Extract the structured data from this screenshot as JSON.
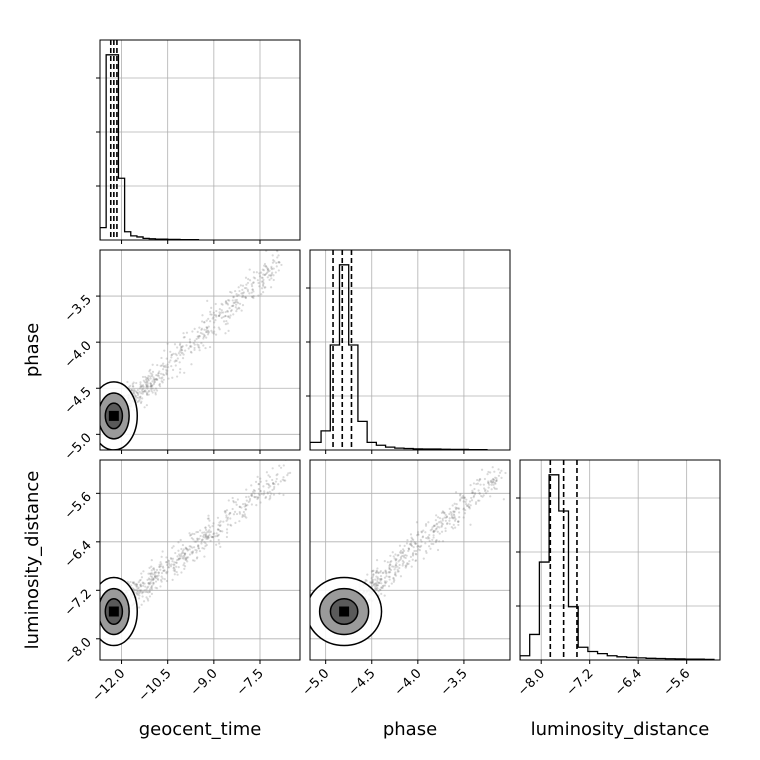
{
  "chart_data": {
    "type": "corner",
    "parameters": [
      "geocent_time",
      "phase",
      "luminosity_distance"
    ],
    "grid": true,
    "colors": {
      "hist": "#000000",
      "points": "#808080",
      "quantile_lines": "#000000"
    },
    "axis_limits": {
      "geocent_time": [
        -12.7,
        -6.2
      ],
      "phase": [
        -5.17,
        -3.0
      ],
      "luminosity_distance": [
        -8.35,
        -5.05
      ]
    },
    "ticks": {
      "geocent_time": {
        "values": [
          -12.0,
          -10.5,
          -9.0,
          -7.5
        ],
        "labels": [
          "−12.0",
          "−10.5",
          "−9.0",
          "−7.5"
        ]
      },
      "phase": {
        "values": [
          -5.0,
          -4.5,
          -4.0,
          -3.5
        ],
        "labels": [
          "−5.0",
          "−4.5",
          "−4.0",
          "−3.5"
        ]
      },
      "luminosity_distance": {
        "values": [
          -8.0,
          -7.2,
          -6.4,
          -5.6
        ],
        "labels": [
          "−8.0",
          "−7.2",
          "−6.4",
          "−5.6"
        ]
      }
    },
    "histograms": {
      "geocent_time": {
        "bin_edges": [
          -12.7,
          -12.5,
          -12.3,
          -12.1,
          -11.9,
          -11.7,
          -11.5,
          -11.3,
          -11.1,
          -10.9,
          -10.7,
          -10.5,
          -10.3,
          -10.1,
          -9.9,
          -9.7,
          -9.5
        ],
        "counts": [
          0.06,
          0.9,
          0.9,
          0.3,
          0.04,
          0.02,
          0.015,
          0.008,
          0.006,
          0.004,
          0.004,
          0.003,
          0.003,
          0.002,
          0.002,
          0.002
        ],
        "quantiles": [
          -12.35,
          -12.25,
          -12.15
        ]
      },
      "phase": {
        "bin_edges": [
          -5.17,
          -5.05,
          -4.95,
          -4.85,
          -4.75,
          -4.65,
          -4.55,
          -4.45,
          -4.35,
          -4.25,
          -4.15,
          -4.05,
          -3.95,
          -3.85,
          -3.75,
          -3.65,
          -3.55,
          -3.45,
          -3.35,
          -3.25
        ],
        "counts": [
          0.04,
          0.1,
          0.55,
          0.97,
          0.55,
          0.15,
          0.04,
          0.025,
          0.015,
          0.01,
          0.008,
          0.006,
          0.005,
          0.005,
          0.004,
          0.003,
          0.003,
          0.002,
          0.002
        ],
        "quantiles": [
          -4.92,
          -4.82,
          -4.72
        ]
      },
      "luminosity_distance": {
        "bin_edges": [
          -8.35,
          -8.19,
          -8.03,
          -7.87,
          -7.71,
          -7.55,
          -7.39,
          -7.23,
          -7.07,
          -6.91,
          -6.75,
          -6.59,
          -6.43,
          -6.27,
          -6.11,
          -5.95,
          -5.79,
          -5.63,
          -5.47,
          -5.31,
          -5.15
        ],
        "counts": [
          0.02,
          0.12,
          0.46,
          0.87,
          0.7,
          0.25,
          0.06,
          0.04,
          0.03,
          0.02,
          0.015,
          0.012,
          0.01,
          0.008,
          0.007,
          0.006,
          0.005,
          0.004,
          0.004,
          0.003
        ],
        "quantiles": [
          -7.85,
          -7.63,
          -7.41
        ]
      }
    },
    "correlations": {
      "phase_vs_geocent_time": {
        "center": [
          -12.25,
          -4.8
        ],
        "trend_end": [
          -6.8,
          -3.1
        ]
      },
      "luminosity_distance_vs_geocent_time": {
        "center": [
          -12.25,
          -7.55
        ],
        "trend_end": [
          -6.7,
          -5.25
        ]
      },
      "luminosity_distance_vs_phase": {
        "center": [
          -4.8,
          -7.55
        ],
        "trend_end": [
          -3.1,
          -5.25
        ]
      }
    }
  }
}
